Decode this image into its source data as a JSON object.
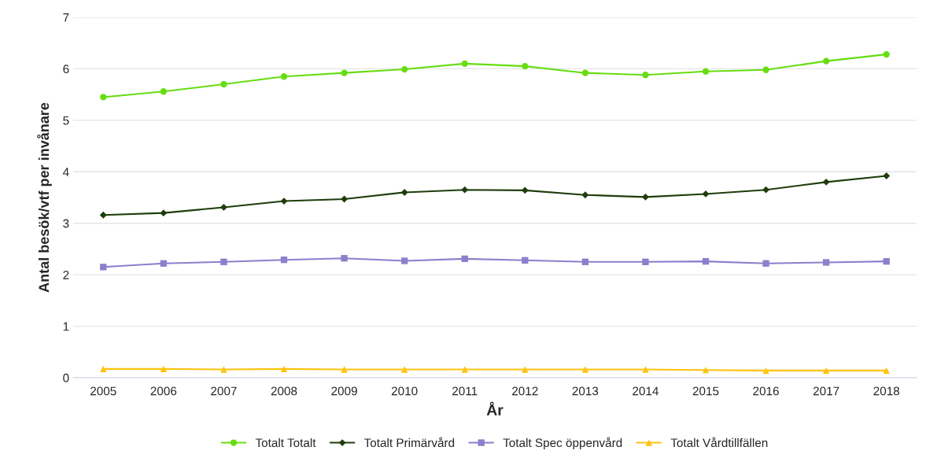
{
  "chart_data": {
    "type": "line",
    "xlabel": "År",
    "ylabel": "Antal besök/vtf per invånare",
    "categories": [
      "2005",
      "2006",
      "2007",
      "2008",
      "2009",
      "2010",
      "2011",
      "2012",
      "2013",
      "2014",
      "2015",
      "2016",
      "2017",
      "2018"
    ],
    "series": [
      {
        "name": "Totalt Totalt",
        "color": "#66dd11",
        "marker": "circle",
        "values": [
          5.45,
          5.56,
          5.7,
          5.85,
          5.92,
          5.99,
          6.1,
          6.05,
          5.92,
          5.88,
          5.95,
          5.98,
          6.15,
          6.28
        ]
      },
      {
        "name": "Totalt Primärvård",
        "color": "#1e3d0c",
        "marker": "diamond",
        "values": [
          3.16,
          3.2,
          3.31,
          3.43,
          3.47,
          3.6,
          3.65,
          3.64,
          3.55,
          3.51,
          3.57,
          3.65,
          3.8,
          3.92
        ]
      },
      {
        "name": "Totalt Spec öppenvård",
        "color": "#8c7fcc",
        "marker": "square",
        "values": [
          2.15,
          2.22,
          2.25,
          2.29,
          2.32,
          2.27,
          2.31,
          2.28,
          2.25,
          2.25,
          2.26,
          2.22,
          2.24,
          2.26
        ]
      },
      {
        "name": "Totalt Vårdtillfällen",
        "color": "#ffc20e",
        "marker": "triangle",
        "values": [
          0.17,
          0.17,
          0.16,
          0.17,
          0.16,
          0.16,
          0.16,
          0.16,
          0.16,
          0.16,
          0.15,
          0.14,
          0.14,
          0.14
        ]
      }
    ],
    "ylim": [
      0,
      7
    ],
    "yticks": [
      0,
      1,
      2,
      3,
      4,
      5,
      6,
      7
    ],
    "grid": "y",
    "legend": "bottom",
    "line_style": "solid"
  }
}
